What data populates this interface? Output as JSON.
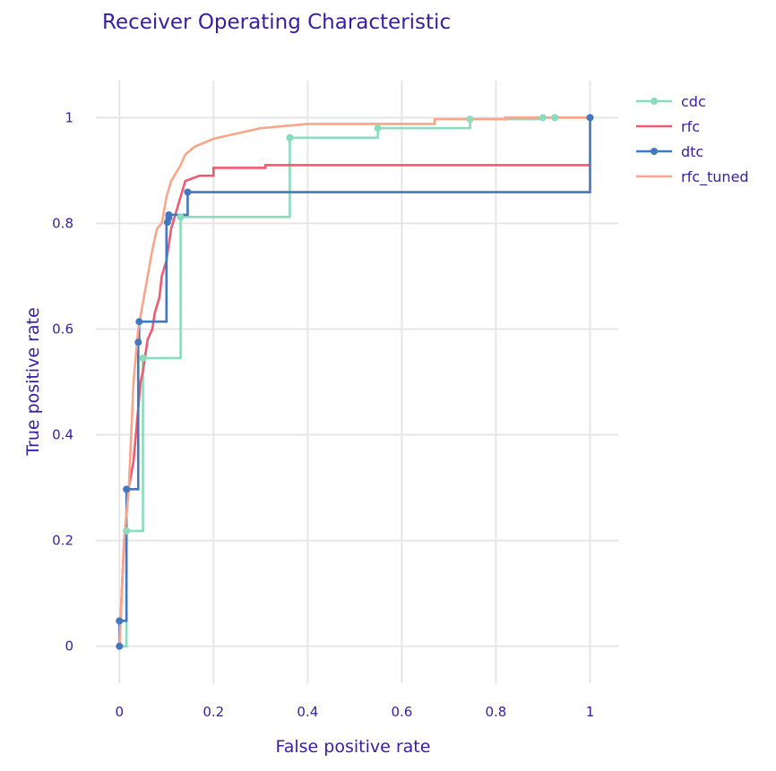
{
  "chart_data": {
    "type": "line",
    "title": "Receiver Operating Characteristic",
    "xlabel": "False positive rate",
    "ylabel": "True positive rate",
    "xlim": [
      -0.05,
      1.06
    ],
    "ylim": [
      -0.07,
      1.07
    ],
    "x_ticks": [
      0,
      0.2,
      0.4,
      0.6,
      0.8,
      1
    ],
    "x_tick_labels": [
      "0",
      "0.2",
      "0.4",
      "0.6",
      "0.8",
      "1"
    ],
    "y_ticks": [
      0,
      0.2,
      0.4,
      0.6,
      0.8,
      1
    ],
    "y_tick_labels": [
      "0",
      "0.2",
      "0.4",
      "0.6",
      "0.8",
      "1"
    ],
    "grid": true,
    "legend_position": "top-right",
    "series": [
      {
        "name": "cdc",
        "color": "#8bdcbe",
        "markers": true,
        "points": [
          [
            0,
            0
          ],
          [
            0.015,
            0
          ],
          [
            0.015,
            0.218
          ],
          [
            0.05,
            0.218
          ],
          [
            0.05,
            0.545
          ],
          [
            0.13,
            0.545
          ],
          [
            0.13,
            0.812
          ],
          [
            0.362,
            0.812
          ],
          [
            0.362,
            0.962
          ],
          [
            0.549,
            0.962
          ],
          [
            0.549,
            0.98
          ],
          [
            0.745,
            0.98
          ],
          [
            0.745,
            0.997
          ],
          [
            0.9,
            0.997
          ],
          [
            0.9,
            1
          ],
          [
            0.925,
            1
          ],
          [
            1,
            1
          ]
        ],
        "marker_points": [
          [
            0,
            0
          ],
          [
            0.015,
            0.218
          ],
          [
            0.05,
            0.545
          ],
          [
            0.13,
            0.812
          ],
          [
            0.362,
            0.962
          ],
          [
            0.549,
            0.98
          ],
          [
            0.745,
            0.997
          ],
          [
            0.9,
            1
          ],
          [
            0.925,
            1
          ],
          [
            1,
            1
          ]
        ]
      },
      {
        "name": "rfc",
        "color": "#f05a71",
        "markers": false,
        "points": [
          [
            0,
            0
          ],
          [
            0.005,
            0.1
          ],
          [
            0.01,
            0.2
          ],
          [
            0.015,
            0.25
          ],
          [
            0.02,
            0.3
          ],
          [
            0.03,
            0.35
          ],
          [
            0.035,
            0.4
          ],
          [
            0.04,
            0.45
          ],
          [
            0.045,
            0.5
          ],
          [
            0.05,
            0.52
          ],
          [
            0.055,
            0.55
          ],
          [
            0.06,
            0.58
          ],
          [
            0.07,
            0.6
          ],
          [
            0.075,
            0.63
          ],
          [
            0.085,
            0.66
          ],
          [
            0.09,
            0.7
          ],
          [
            0.1,
            0.73
          ],
          [
            0.105,
            0.76
          ],
          [
            0.11,
            0.79
          ],
          [
            0.12,
            0.82
          ],
          [
            0.13,
            0.85
          ],
          [
            0.14,
            0.88
          ],
          [
            0.17,
            0.89
          ],
          [
            0.2,
            0.89
          ],
          [
            0.2,
            0.905
          ],
          [
            0.31,
            0.905
          ],
          [
            0.31,
            0.91
          ],
          [
            1,
            0.91
          ]
        ]
      },
      {
        "name": "dtc",
        "color": "#4378bf",
        "markers": true,
        "points": [
          [
            0,
            0
          ],
          [
            0,
            0.048
          ],
          [
            0.015,
            0.048
          ],
          [
            0.015,
            0.297
          ],
          [
            0.04,
            0.297
          ],
          [
            0.04,
            0.575
          ],
          [
            0.042,
            0.575
          ],
          [
            0.042,
            0.614
          ],
          [
            0.1,
            0.614
          ],
          [
            0.1,
            0.802
          ],
          [
            0.102,
            0.802
          ],
          [
            0.102,
            0.81
          ],
          [
            0.105,
            0.81
          ],
          [
            0.105,
            0.816
          ],
          [
            0.145,
            0.816
          ],
          [
            0.145,
            0.859
          ],
          [
            1,
            0.859
          ],
          [
            1,
            1
          ]
        ],
        "marker_points": [
          [
            0,
            0
          ],
          [
            0,
            0.048
          ],
          [
            0.015,
            0.297
          ],
          [
            0.04,
            0.575
          ],
          [
            0.042,
            0.614
          ],
          [
            0.102,
            0.802
          ],
          [
            0.105,
            0.81
          ],
          [
            0.105,
            0.816
          ],
          [
            0.145,
            0.859
          ],
          [
            1,
            1
          ]
        ]
      },
      {
        "name": "rfc_tuned",
        "color": "#f9a58a",
        "markers": false,
        "points": [
          [
            0,
            0
          ],
          [
            0.005,
            0.1
          ],
          [
            0.01,
            0.2
          ],
          [
            0.02,
            0.3
          ],
          [
            0.025,
            0.4
          ],
          [
            0.03,
            0.5
          ],
          [
            0.04,
            0.6
          ],
          [
            0.05,
            0.65
          ],
          [
            0.06,
            0.7
          ],
          [
            0.07,
            0.75
          ],
          [
            0.08,
            0.79
          ],
          [
            0.09,
            0.8
          ],
          [
            0.1,
            0.85
          ],
          [
            0.11,
            0.88
          ],
          [
            0.13,
            0.91
          ],
          [
            0.14,
            0.93
          ],
          [
            0.16,
            0.945
          ],
          [
            0.2,
            0.96
          ],
          [
            0.25,
            0.97
          ],
          [
            0.3,
            0.98
          ],
          [
            0.4,
            0.988
          ],
          [
            0.67,
            0.988
          ],
          [
            0.67,
            0.997
          ],
          [
            0.82,
            0.997
          ],
          [
            0.82,
            1
          ],
          [
            1,
            1
          ]
        ]
      }
    ]
  }
}
